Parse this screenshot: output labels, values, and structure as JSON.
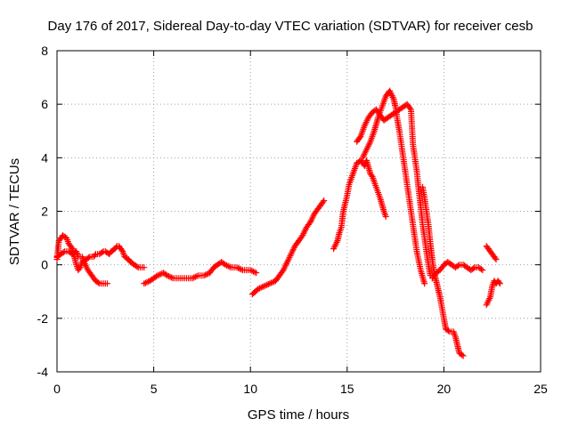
{
  "chart_data": {
    "type": "scatter",
    "title": "Day 176 of 2017, Sidereal Day-to-day VTEC variation (SDTVAR) for receiver cesb",
    "xlabel": "GPS time / hours",
    "ylabel": "SDTVAR / TECUs",
    "xlim": [
      0,
      25
    ],
    "ylim": [
      -4,
      8
    ],
    "xticks": [
      0,
      5,
      10,
      15,
      20,
      25
    ],
    "yticks": [
      -4,
      -2,
      0,
      2,
      4,
      6,
      8
    ],
    "xtick_labels": [
      "0",
      "5",
      "10",
      "15",
      "20",
      "25"
    ],
    "ytick_labels": [
      "-4",
      "-2",
      "0",
      "2",
      "4",
      "6",
      "8"
    ],
    "grid": true,
    "marker": "+",
    "color": "#ff0000",
    "series": [
      {
        "segments": [
          [
            [
              0.0,
              0.2
            ],
            [
              0.1,
              0.9
            ],
            [
              0.3,
              1.1
            ],
            [
              0.5,
              1.0
            ],
            [
              0.6,
              0.8
            ],
            [
              0.8,
              0.6
            ],
            [
              0.9,
              0.3
            ],
            [
              1.0,
              0.0
            ],
            [
              1.1,
              -0.2
            ],
            [
              1.2,
              -0.1
            ],
            [
              1.3,
              0.1
            ],
            [
              1.5,
              0.2
            ],
            [
              1.7,
              0.3
            ],
            [
              1.9,
              0.3
            ],
            [
              2.0,
              0.4
            ],
            [
              2.2,
              0.4
            ],
            [
              2.4,
              0.5
            ],
            [
              2.5,
              0.5
            ],
            [
              2.7,
              0.4
            ],
            [
              2.8,
              0.5
            ],
            [
              3.0,
              0.6
            ],
            [
              3.1,
              0.7
            ],
            [
              3.2,
              0.7
            ],
            [
              3.3,
              0.6
            ],
            [
              3.4,
              0.5
            ],
            [
              3.5,
              0.3
            ],
            [
              3.7,
              0.2
            ],
            [
              3.8,
              0.1
            ],
            [
              4.0,
              0.0
            ],
            [
              4.2,
              -0.1
            ],
            [
              4.4,
              -0.1
            ],
            [
              4.5,
              -0.1
            ]
          ],
          [
            [
              0.0,
              0.3
            ],
            [
              0.2,
              0.4
            ],
            [
              0.4,
              0.5
            ],
            [
              0.6,
              0.5
            ],
            [
              0.8,
              0.4
            ],
            [
              1.0,
              0.5
            ],
            [
              1.1,
              0.3
            ],
            [
              1.3,
              0.3
            ],
            [
              1.4,
              0.1
            ],
            [
              1.6,
              -0.2
            ],
            [
              1.8,
              -0.4
            ],
            [
              2.0,
              -0.6
            ],
            [
              2.2,
              -0.7
            ],
            [
              2.4,
              -0.7
            ],
            [
              2.6,
              -0.7
            ]
          ],
          [
            [
              4.5,
              -0.7
            ],
            [
              4.8,
              -0.6
            ],
            [
              5.0,
              -0.5
            ],
            [
              5.2,
              -0.4
            ],
            [
              5.5,
              -0.3
            ],
            [
              5.7,
              -0.4
            ],
            [
              6.0,
              -0.5
            ],
            [
              6.3,
              -0.5
            ],
            [
              6.6,
              -0.5
            ],
            [
              7.0,
              -0.5
            ],
            [
              7.3,
              -0.4
            ],
            [
              7.6,
              -0.4
            ],
            [
              7.9,
              -0.3
            ],
            [
              8.1,
              -0.1
            ],
            [
              8.3,
              0.0
            ],
            [
              8.5,
              0.1
            ],
            [
              8.7,
              0.0
            ],
            [
              9.0,
              -0.1
            ],
            [
              9.3,
              -0.1
            ],
            [
              9.6,
              -0.2
            ],
            [
              9.8,
              -0.2
            ],
            [
              10.0,
              -0.2
            ],
            [
              10.3,
              -0.3
            ]
          ],
          [
            [
              10.1,
              -1.1
            ],
            [
              10.4,
              -0.9
            ],
            [
              10.7,
              -0.8
            ],
            [
              11.0,
              -0.7
            ],
            [
              11.3,
              -0.6
            ],
            [
              11.5,
              -0.4
            ],
            [
              11.7,
              -0.2
            ],
            [
              11.9,
              0.1
            ],
            [
              12.1,
              0.4
            ],
            [
              12.3,
              0.7
            ],
            [
              12.5,
              0.9
            ],
            [
              12.7,
              1.1
            ],
            [
              12.9,
              1.4
            ],
            [
              13.1,
              1.6
            ],
            [
              13.3,
              1.9
            ],
            [
              13.5,
              2.1
            ],
            [
              13.7,
              2.3
            ],
            [
              13.8,
              2.4
            ]
          ],
          [
            [
              14.3,
              0.6
            ],
            [
              14.5,
              0.9
            ],
            [
              14.6,
              1.2
            ],
            [
              14.7,
              1.4
            ],
            [
              14.8,
              2.0
            ],
            [
              15.0,
              2.6
            ],
            [
              15.1,
              3.0
            ],
            [
              15.3,
              3.4
            ],
            [
              15.5,
              3.8
            ],
            [
              15.7,
              3.9
            ],
            [
              15.9,
              3.7
            ],
            [
              16.0,
              3.9
            ],
            [
              16.2,
              3.4
            ],
            [
              16.3,
              3.3
            ],
            [
              16.5,
              2.9
            ],
            [
              16.7,
              2.5
            ],
            [
              16.9,
              2.0
            ],
            [
              17.0,
              1.8
            ]
          ],
          [
            [
              15.5,
              4.6
            ],
            [
              15.7,
              4.8
            ],
            [
              15.9,
              5.2
            ],
            [
              16.1,
              5.5
            ],
            [
              16.3,
              5.7
            ],
            [
              16.5,
              5.8
            ],
            [
              16.7,
              5.6
            ],
            [
              16.9,
              5.4
            ],
            [
              17.1,
              5.5
            ],
            [
              17.3,
              5.6
            ],
            [
              17.5,
              5.7
            ],
            [
              17.7,
              5.8
            ],
            [
              17.9,
              5.9
            ],
            [
              18.1,
              6.0
            ],
            [
              18.3,
              5.8
            ],
            [
              18.4,
              4.5
            ],
            [
              18.5,
              4.0
            ],
            [
              18.6,
              3.5
            ],
            [
              18.7,
              2.8
            ],
            [
              18.8,
              2.2
            ],
            [
              18.9,
              1.5
            ],
            [
              19.0,
              1.0
            ],
            [
              19.1,
              0.5
            ],
            [
              19.2,
              0.0
            ],
            [
              19.3,
              -0.4
            ]
          ],
          [
            [
              15.8,
              4.0
            ],
            [
              16.0,
              4.3
            ],
            [
              16.2,
              4.6
            ],
            [
              16.4,
              5.0
            ],
            [
              16.6,
              5.5
            ],
            [
              16.8,
              5.9
            ],
            [
              17.0,
              6.3
            ],
            [
              17.2,
              6.5
            ],
            [
              17.4,
              6.2
            ],
            [
              17.5,
              5.9
            ],
            [
              17.6,
              5.4
            ],
            [
              17.7,
              5.0
            ],
            [
              17.8,
              4.5
            ],
            [
              18.0,
              3.5
            ],
            [
              18.2,
              2.5
            ],
            [
              18.4,
              1.5
            ],
            [
              18.6,
              0.5
            ],
            [
              18.8,
              -0.2
            ],
            [
              19.0,
              -0.7
            ]
          ],
          [
            [
              18.9,
              2.9
            ],
            [
              19.0,
              2.5
            ],
            [
              19.1,
              2.0
            ],
            [
              19.2,
              1.5
            ],
            [
              19.3,
              0.8
            ],
            [
              19.4,
              0.2
            ],
            [
              19.5,
              -0.3
            ],
            [
              19.6,
              -0.6
            ],
            [
              19.7,
              -0.9
            ],
            [
              19.8,
              -1.2
            ],
            [
              19.9,
              -1.6
            ],
            [
              20.0,
              -2.0
            ],
            [
              20.1,
              -2.4
            ],
            [
              20.3,
              -2.5
            ],
            [
              20.5,
              -2.5
            ],
            [
              20.6,
              -2.7
            ],
            [
              20.7,
              -3.0
            ],
            [
              20.8,
              -3.3
            ],
            [
              21.0,
              -3.4
            ]
          ],
          [
            [
              19.4,
              -0.5
            ],
            [
              19.6,
              -0.3
            ],
            [
              19.8,
              -0.2
            ],
            [
              20.0,
              0.0
            ],
            [
              20.2,
              0.1
            ],
            [
              20.4,
              0.0
            ],
            [
              20.6,
              -0.1
            ],
            [
              20.8,
              0.0
            ],
            [
              21.0,
              0.0
            ],
            [
              21.2,
              -0.1
            ],
            [
              21.4,
              -0.2
            ],
            [
              21.6,
              -0.1
            ],
            [
              21.8,
              -0.1
            ],
            [
              22.0,
              -0.2
            ]
          ],
          [
            [
              22.2,
              -1.5
            ],
            [
              22.4,
              -1.2
            ],
            [
              22.5,
              -0.8
            ],
            [
              22.6,
              -0.6
            ],
            [
              22.7,
              -0.7
            ],
            [
              22.8,
              -0.6
            ],
            [
              22.9,
              -0.7
            ]
          ],
          [
            [
              22.2,
              0.7
            ],
            [
              22.3,
              0.6
            ],
            [
              22.4,
              0.5
            ],
            [
              22.5,
              0.4
            ],
            [
              22.6,
              0.3
            ],
            [
              22.7,
              0.2
            ]
          ]
        ]
      }
    ]
  }
}
